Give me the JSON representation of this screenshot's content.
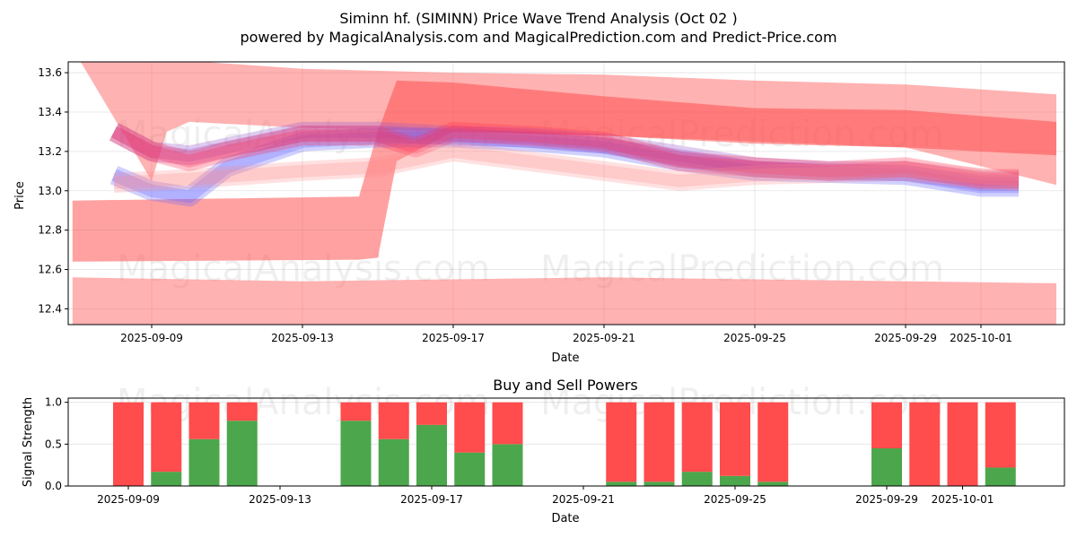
{
  "chart_data": [
    {
      "type": "area",
      "title": "Siminn hf. (SIMINN) Price Wave Trend Analysis (Oct 02 )",
      "subtitle": "powered by MagicalAnalysis.com and MagicalPrediction.com and Predict-Price.com",
      "xlabel": "Date",
      "ylabel": "Price",
      "ylim": [
        12.32,
        13.655
      ],
      "xlim": [
        "2025-09-06.8",
        "2025-10-03.2"
      ],
      "grid": true,
      "x_ticks": [
        "2025-09-09",
        "2025-09-13",
        "2025-09-17",
        "2025-09-21",
        "2025-09-25",
        "2025-09-29",
        "2025-10-01"
      ],
      "y_ticks": [
        "12.4",
        "12.6",
        "12.8",
        "13.0",
        "13.2",
        "13.4",
        "13.6"
      ],
      "watermarks": [
        "MagicalAnalysis.com",
        "MagicalPrediction.com"
      ],
      "bands": [
        {
          "name": "upper-wide-band",
          "color": "#ff6666",
          "opacity": 0.5,
          "x": [
            "2025-09-07.1",
            "2025-09-09",
            "2025-09-09.4",
            "2025-09-10",
            "2025-09-13",
            "2025-09-17",
            "2025-09-21",
            "2025-09-25",
            "2025-09-29",
            "2025-10-03"
          ],
          "upper": [
            13.66,
            13.66,
            13.66,
            13.66,
            13.62,
            13.6,
            13.59,
            13.56,
            13.54,
            13.49
          ],
          "lower": [
            13.66,
            13.05,
            13.3,
            13.35,
            13.32,
            13.3,
            13.28,
            13.25,
            13.22,
            13.03
          ]
        },
        {
          "name": "mid-wide-band",
          "color": "#ff4444",
          "opacity": 0.5,
          "x": [
            "2025-09-06.9",
            "2025-09-14.5",
            "2025-09-15",
            "2025-09-15.5",
            "2025-09-17",
            "2025-09-21",
            "2025-09-25",
            "2025-09-29",
            "2025-10-03"
          ],
          "upper": [
            12.95,
            12.97,
            13.3,
            13.56,
            13.55,
            13.48,
            13.42,
            13.41,
            13.35
          ],
          "lower": [
            12.64,
            12.65,
            12.66,
            13.15,
            13.3,
            13.28,
            13.24,
            13.22,
            13.18
          ]
        },
        {
          "name": "lower-flat-band",
          "color": "#ff6666",
          "opacity": 0.5,
          "x": [
            "2025-09-06.9",
            "2025-09-13",
            "2025-09-17",
            "2025-09-21",
            "2025-09-25",
            "2025-09-29",
            "2025-10-03"
          ],
          "upper": [
            12.56,
            12.54,
            12.55,
            12.56,
            12.55,
            12.54,
            12.53
          ],
          "lower": [
            12.3,
            12.3,
            12.3,
            12.3,
            12.3,
            12.3,
            12.3
          ]
        }
      ],
      "waves": [
        {
          "name": "blue-wave-1",
          "color": "#6666ff",
          "opacity": 0.3,
          "x": [
            "2025-09-08",
            "2025-09-09",
            "2025-09-10",
            "2025-09-11",
            "2025-09-13",
            "2025-09-15",
            "2025-09-17",
            "2025-09-19",
            "2025-09-21",
            "2025-09-23",
            "2025-09-25",
            "2025-09-27",
            "2025-09-29",
            "2025-10-01",
            "2025-10-02"
          ],
          "center": [
            13.08,
            13.0,
            12.97,
            13.12,
            13.25,
            13.27,
            13.27,
            13.25,
            13.22,
            13.15,
            13.1,
            13.09,
            13.08,
            13.02,
            13.02
          ]
        },
        {
          "name": "purple-wave-2",
          "color": "#9955cc",
          "opacity": 0.3,
          "x": [
            "2025-09-08",
            "2025-09-09",
            "2025-09-10",
            "2025-09-11",
            "2025-09-13",
            "2025-09-15",
            "2025-09-17",
            "2025-09-19",
            "2025-09-21",
            "2025-09-23",
            "2025-09-25",
            "2025-09-27",
            "2025-09-29",
            "2025-10-01",
            "2025-10-02"
          ],
          "center": [
            13.3,
            13.2,
            13.18,
            13.22,
            13.3,
            13.3,
            13.28,
            13.27,
            13.24,
            13.18,
            13.12,
            13.1,
            13.1,
            13.05,
            13.05
          ]
        },
        {
          "name": "red-wave-3",
          "color": "#ff3355",
          "opacity": 0.3,
          "x": [
            "2025-09-08",
            "2025-09-09",
            "2025-09-10",
            "2025-09-11",
            "2025-09-13",
            "2025-09-15",
            "2025-09-16",
            "2025-09-17",
            "2025-09-19",
            "2025-09-21",
            "2025-09-23",
            "2025-09-25",
            "2025-09-27",
            "2025-09-29",
            "2025-10-01",
            "2025-10-02"
          ],
          "center": [
            13.3,
            13.2,
            13.15,
            13.2,
            13.28,
            13.28,
            13.22,
            13.3,
            13.28,
            13.25,
            13.15,
            13.12,
            13.1,
            13.12,
            13.06,
            13.06
          ]
        },
        {
          "name": "pink-wave-4",
          "color": "#ff8888",
          "opacity": 0.25,
          "x": [
            "2025-09-08",
            "2025-09-10",
            "2025-09-13",
            "2025-09-15",
            "2025-09-17",
            "2025-09-19",
            "2025-09-21",
            "2025-09-23",
            "2025-09-25",
            "2025-09-29",
            "2025-10-02"
          ],
          "center": [
            13.04,
            13.06,
            13.1,
            13.12,
            13.2,
            13.15,
            13.1,
            13.05,
            13.08,
            13.1,
            13.05
          ]
        }
      ]
    },
    {
      "type": "bar",
      "title": "Buy and Sell Powers",
      "xlabel": "Date",
      "ylabel": "Signal Strength",
      "ylim": [
        0,
        1.05
      ],
      "grid": true,
      "x_ticks": [
        "2025-09-09",
        "2025-09-13",
        "2025-09-17",
        "2025-09-21",
        "2025-09-25",
        "2025-09-29",
        "2025-10-01"
      ],
      "y_ticks": [
        "0.0",
        "0.5",
        "1.0"
      ],
      "categories": [
        "2025-09-09",
        "2025-09-10",
        "2025-09-11",
        "2025-09-12",
        "2025-09-15",
        "2025-09-16",
        "2025-09-17",
        "2025-09-18",
        "2025-09-19",
        "2025-09-22",
        "2025-09-23",
        "2025-09-24",
        "2025-09-25",
        "2025-09-26",
        "2025-09-29",
        "2025-09-30",
        "2025-10-01",
        "2025-10-02"
      ],
      "series": [
        {
          "name": "Buy",
          "color": "#4ca64c",
          "values": [
            0.0,
            0.17,
            0.56,
            0.78,
            0.78,
            0.56,
            0.73,
            0.4,
            0.5,
            0.05,
            0.05,
            0.17,
            0.12,
            0.05,
            0.45,
            0.0,
            0.0,
            0.22
          ]
        },
        {
          "name": "Sell",
          "color": "#ff4c4c",
          "values": [
            1.0,
            0.83,
            0.44,
            0.22,
            0.22,
            0.44,
            0.27,
            0.6,
            0.5,
            0.95,
            0.95,
            0.83,
            0.88,
            0.95,
            0.55,
            1.0,
            1.0,
            0.78
          ]
        }
      ]
    }
  ]
}
